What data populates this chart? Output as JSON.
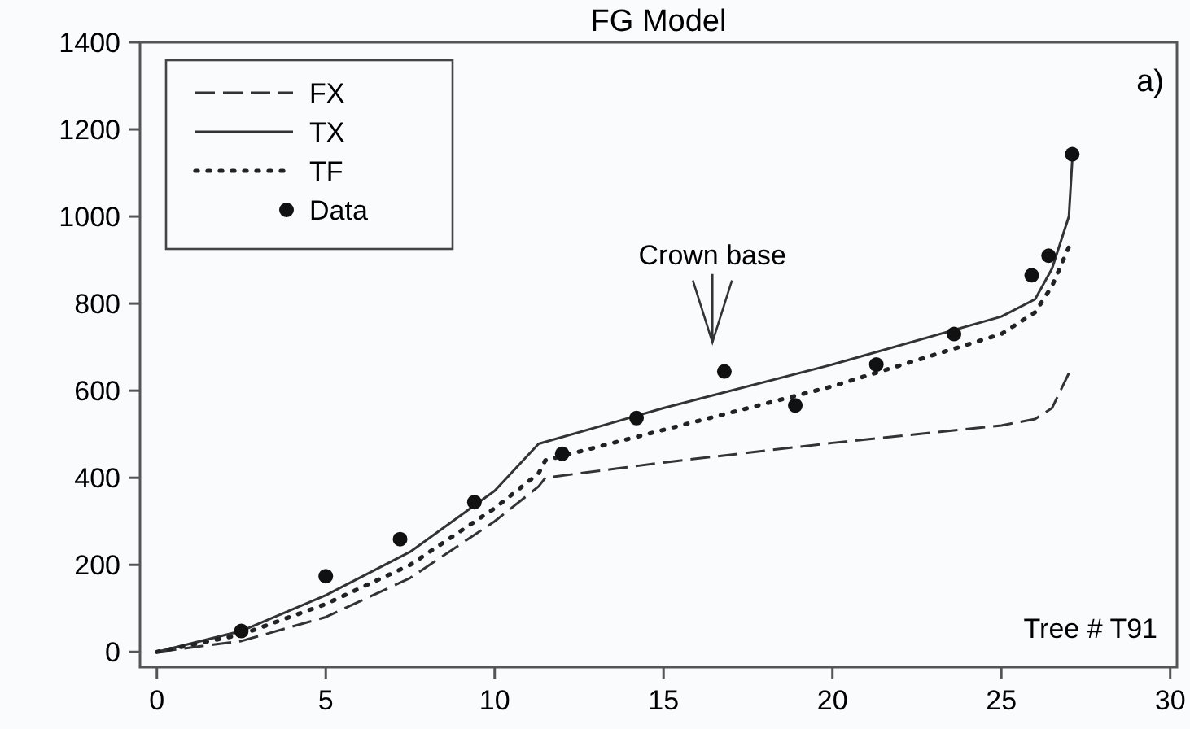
{
  "chart_data": {
    "type": "line",
    "title": "FG Model",
    "xlim": [
      -0.5,
      30.2
    ],
    "xticks": [
      0,
      5,
      10,
      15,
      20,
      25,
      30
    ],
    "ylim": [
      -35,
      1400
    ],
    "yticks": [
      0,
      200,
      400,
      600,
      800,
      1000,
      1200,
      1400
    ],
    "grid": false,
    "legend": "top left",
    "annotations": [
      "a)",
      "Tree # T91",
      "Crown base"
    ],
    "series": [
      {
        "name": "FX",
        "line_style": "dashed",
        "color": "#333333",
        "x": [
          0,
          2.5,
          5,
          7.5,
          10,
          11.3,
          11.5,
          15,
          20,
          25,
          26,
          26.5,
          27
        ],
        "values": [
          0,
          25,
          80,
          170,
          300,
          380,
          400,
          435,
          480,
          520,
          535,
          560,
          640
        ]
      },
      {
        "name": "TX",
        "line_style": "solid",
        "color": "#333333",
        "x": [
          0,
          2.5,
          5,
          7.5,
          10,
          11.3,
          15,
          20,
          25,
          26,
          26.5,
          27,
          27.1
        ],
        "values": [
          0,
          48,
          130,
          230,
          370,
          478,
          560,
          660,
          770,
          810,
          880,
          1000,
          1130
        ]
      },
      {
        "name": "TF",
        "line_style": "dotted",
        "color": "#222222",
        "x": [
          0,
          2.5,
          5,
          7.5,
          10,
          11.3,
          11.5,
          15,
          20,
          25,
          26,
          26.5,
          27
        ],
        "values": [
          0,
          40,
          110,
          200,
          330,
          410,
          440,
          510,
          610,
          730,
          780,
          840,
          930
        ]
      },
      {
        "name": "Data",
        "type": "scatter",
        "marker": "circle",
        "color": "#111111",
        "x": [
          2.5,
          5,
          7.2,
          9.4,
          12,
          14.2,
          16.8,
          18.9,
          21.3,
          23.6,
          25.9,
          26.4,
          27.1
        ],
        "values": [
          48,
          174,
          259,
          344,
          455,
          537,
          644,
          566,
          660,
          730,
          865,
          910,
          1143
        ]
      }
    ]
  }
}
